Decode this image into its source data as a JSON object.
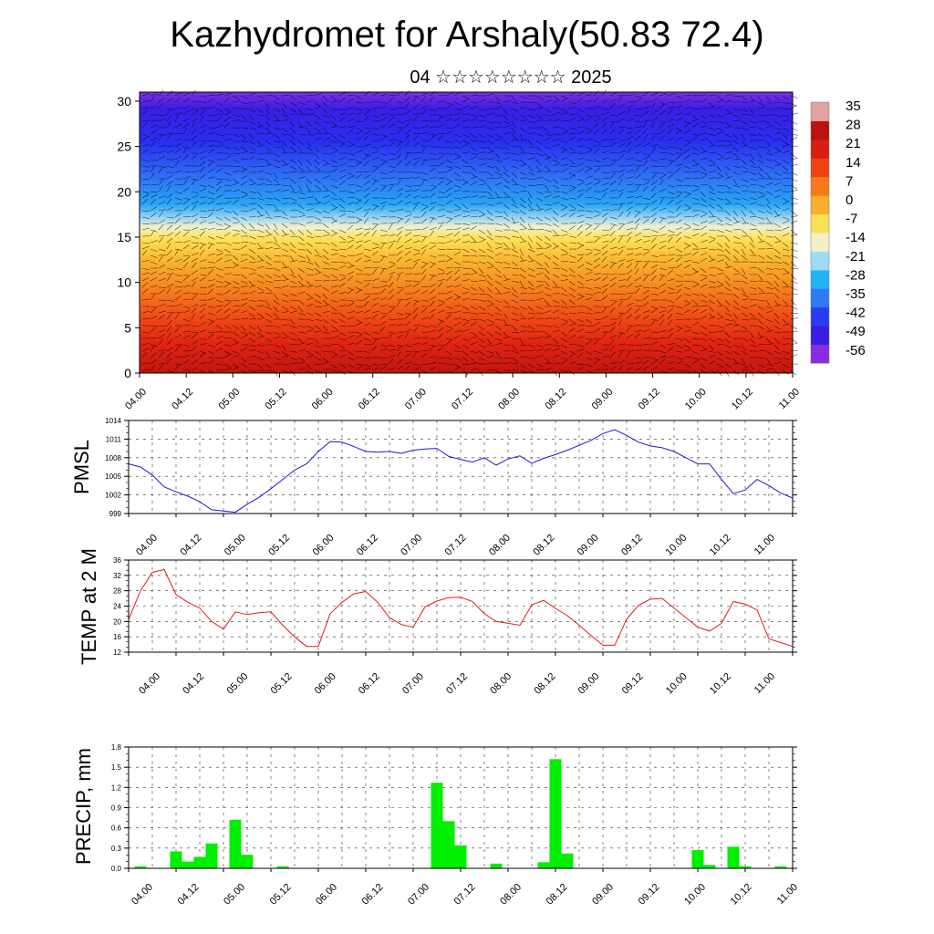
{
  "title": "Kazhydromet for Arshaly(50.83 72.4)",
  "subtitle": "04 ☆☆☆☆☆☆☆☆ 2025",
  "time_ticks": [
    "04.00",
    "04.12",
    "05.00",
    "05.12",
    "06.00",
    "06.12",
    "07.00",
    "07.12",
    "08.00",
    "08.12",
    "09.00",
    "09.12",
    "10.00",
    "10.12",
    "11.00"
  ],
  "chart_data": [
    {
      "type": "heatmap",
      "name": "vertical cross-section",
      "yticks": [
        0,
        5,
        10,
        15,
        20,
        25,
        30
      ],
      "ylim": [
        0,
        31
      ],
      "colorbar_labels": [
        "35",
        "28",
        "21",
        "14",
        "7",
        "0",
        "-7",
        "-14",
        "-21",
        "-28",
        "-35",
        "-42",
        "-49",
        "-56"
      ],
      "colorbar_colors": [
        "#8a2be2",
        "#3a1ee0",
        "#2a3cf0",
        "#2f7af5",
        "#21b4f5",
        "#9fdcf3",
        "#f3f0c8",
        "#fbe05a",
        "#f9ae2c",
        "#f67a1c",
        "#ef4316",
        "#d81d12",
        "#b8130f",
        "#e6a0a0"
      ]
    },
    {
      "type": "line",
      "ylabel": "PMSL",
      "yticks": [
        "999",
        "1002",
        "1005",
        "1008",
        "1011",
        "1014"
      ],
      "ylim": [
        999,
        1014
      ],
      "color": "#1b1bd6",
      "x_hours": [
        0,
        3,
        6,
        9,
        12,
        15,
        18,
        21,
        24,
        27,
        30,
        33,
        36,
        39,
        42,
        45,
        48,
        51,
        54,
        57,
        60,
        63,
        66,
        69,
        72,
        75,
        78,
        81,
        84,
        87,
        90,
        93,
        96,
        99,
        102,
        105,
        108,
        111,
        114,
        117,
        120,
        123,
        126,
        129,
        132,
        135,
        138,
        141,
        144,
        147,
        150,
        153,
        156,
        159,
        162,
        165,
        168
      ],
      "values": [
        1007,
        1006.5,
        1005.2,
        1003.3,
        1002.5,
        1001.8,
        1000.9,
        999.6,
        999.4,
        999.2,
        1000.5,
        1001.6,
        1003,
        1004.5,
        1006,
        1007,
        1009,
        1010.6,
        1010.5,
        1009.8,
        1009,
        1008.9,
        1009,
        1008.7,
        1009.2,
        1009.4,
        1009.5,
        1008.2,
        1007.7,
        1007.3,
        1008,
        1006.8,
        1007.8,
        1008.3,
        1007.1,
        1007.9,
        1008.5,
        1009.2,
        1010,
        1010.8,
        1011.9,
        1012.5,
        1011.6,
        1010.5,
        1009.9,
        1009.6,
        1009,
        1008,
        1007,
        1007,
        1004.5,
        1002.2,
        1002.8,
        1004.5,
        1003.5,
        1002.3,
        1001.5
      ]
    },
    {
      "type": "line",
      "ylabel": "TEMP at 2 M",
      "yticks": [
        "12",
        "16",
        "20",
        "24",
        "28",
        "32",
        "36"
      ],
      "ylim": [
        12,
        36
      ],
      "color": "#e11b1b",
      "x_hours": [
        0,
        3,
        6,
        9,
        12,
        15,
        18,
        21,
        24,
        27,
        30,
        33,
        36,
        39,
        42,
        45,
        48,
        51,
        54,
        57,
        60,
        63,
        66,
        69,
        72,
        75,
        78,
        81,
        84,
        87,
        90,
        93,
        96,
        99,
        102,
        105,
        108,
        111,
        114,
        117,
        120,
        123,
        126,
        129,
        132,
        135,
        138,
        141,
        144,
        147,
        150,
        153,
        156,
        159,
        162,
        165,
        168
      ],
      "values": [
        20.5,
        28,
        32.8,
        33.5,
        27,
        25,
        23.5,
        20,
        18,
        22.5,
        21.8,
        22.3,
        22.5,
        19,
        16,
        13.5,
        13.5,
        22,
        25,
        27.2,
        27.8,
        25,
        21,
        19.2,
        18.5,
        23.8,
        25.3,
        26.2,
        26.3,
        25.2,
        22,
        20,
        19.5,
        19,
        24.3,
        25.5,
        23.4,
        21.5,
        19,
        16.3,
        13.8,
        13.8,
        20.6,
        24.2,
        25.8,
        26,
        23.5,
        21,
        18.5,
        17.5,
        19.5,
        25.2,
        24.5,
        23,
        15.5,
        14.5,
        13.5
      ]
    },
    {
      "type": "bar",
      "ylabel": "PRECIP, mm",
      "yticks": [
        "0.0",
        "0.3",
        "0.6",
        "0.9",
        "1.2",
        "1.5",
        "1.8"
      ],
      "ylim": [
        0,
        1.8
      ],
      "color": "#00ee00",
      "x_hours": [
        3,
        12,
        15,
        18,
        21,
        27,
        30,
        39,
        78,
        81,
        84,
        93,
        105,
        108,
        111,
        144,
        147,
        153,
        156,
        165
      ],
      "values": [
        0.03,
        0.25,
        0.1,
        0.17,
        0.37,
        0.72,
        0.2,
        0.03,
        1.27,
        0.7,
        0.34,
        0.07,
        0.09,
        1.62,
        0.22,
        0.27,
        0.05,
        0.32,
        0.03,
        0.03
      ]
    }
  ]
}
